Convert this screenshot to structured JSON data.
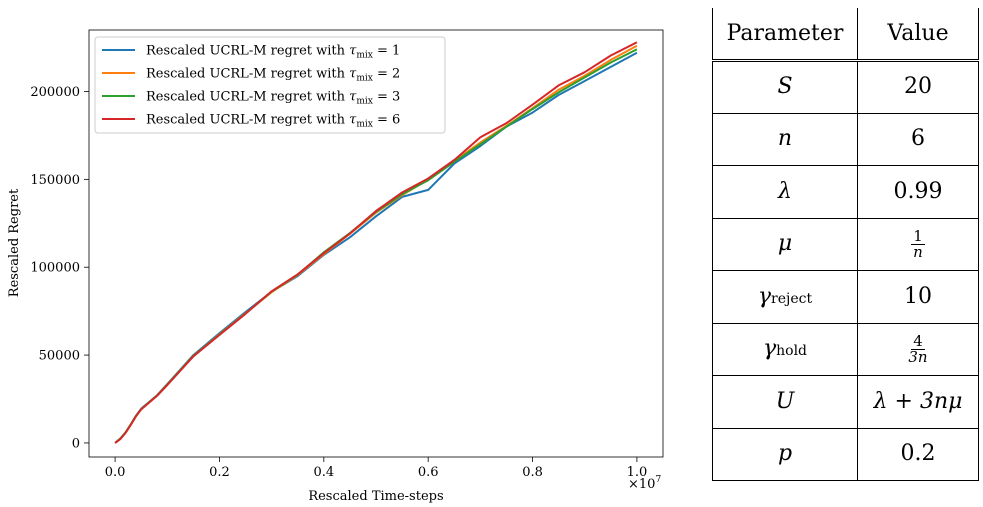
{
  "chart_data": {
    "type": "line",
    "xlabel": "Rescaled Time-steps",
    "ylabel": "Rescaled Regret",
    "x_multiplier_label": "×10",
    "x_multiplier_exp": "7",
    "xlim": [
      -0.05,
      1.05
    ],
    "ylim": [
      -8000,
      235000
    ],
    "xticks": [
      0.0,
      0.2,
      0.4,
      0.6,
      0.8,
      1.0
    ],
    "xtick_labels": [
      "0.0",
      "0.2",
      "0.4",
      "0.6",
      "0.8",
      "1.0"
    ],
    "yticks": [
      0,
      50000,
      100000,
      150000,
      200000
    ],
    "ytick_labels": [
      "0",
      "50000",
      "100000",
      "150000",
      "200000"
    ],
    "legend_position": "top-left",
    "x": [
      0.0,
      0.01,
      0.02,
      0.03,
      0.04,
      0.05,
      0.08,
      0.1,
      0.15,
      0.2,
      0.25,
      0.3,
      0.35,
      0.4,
      0.45,
      0.5,
      0.55,
      0.6,
      0.65,
      0.7,
      0.75,
      0.8,
      0.85,
      0.9,
      0.95,
      1.0
    ],
    "series": [
      {
        "name": "Rescaled UCRL-M regret with τ_mix = 1",
        "legend_text": "Rescaled UCRL-M regret with ",
        "tau_text": "τ",
        "sub_text": "mix",
        "eq_text": " = 1",
        "color": "#1f77b4",
        "values": [
          0,
          2500,
          6000,
          10500,
          15500,
          19500,
          27000,
          33500,
          50000,
          62500,
          74500,
          86000,
          95000,
          107000,
          117000,
          129000,
          140000,
          144000,
          159000,
          169000,
          180000,
          188000,
          198000,
          206000,
          214000,
          222000
        ]
      },
      {
        "name": "Rescaled UCRL-M regret with τ_mix = 2",
        "legend_text": "Rescaled UCRL-M regret with ",
        "tau_text": "τ",
        "sub_text": "mix",
        "eq_text": " = 2",
        "color": "#ff7f0e",
        "values": [
          0,
          2300,
          5800,
          10300,
          15300,
          19200,
          26800,
          33200,
          49500,
          61800,
          73800,
          85800,
          95500,
          107500,
          119000,
          131000,
          141000,
          150000,
          160500,
          171000,
          180500,
          190500,
          201000,
          209000,
          218000,
          226000
        ]
      },
      {
        "name": "Rescaled UCRL-M regret with τ_mix = 3",
        "legend_text": "Rescaled UCRL-M regret with ",
        "tau_text": "τ",
        "sub_text": "mix",
        "eq_text": " = 3",
        "color": "#2ca02c",
        "values": [
          0,
          2400,
          5900,
          10400,
          15400,
          19300,
          26900,
          33300,
          49600,
          61600,
          73600,
          86100,
          95800,
          108500,
          119500,
          131500,
          141500,
          149500,
          160000,
          170000,
          180000,
          190000,
          199500,
          208000,
          216500,
          224000
        ]
      },
      {
        "name": "Rescaled UCRL-M regret with τ_mix = 6",
        "legend_text": "Rescaled UCRL-M regret with ",
        "tau_text": "τ",
        "sub_text": "mix",
        "eq_text": " = 6",
        "color": "#d62728",
        "values": [
          0,
          2200,
          5700,
          10200,
          15200,
          19100,
          26700,
          33000,
          49300,
          61500,
          73500,
          86300,
          96000,
          108000,
          119200,
          132000,
          142500,
          150500,
          161000,
          174000,
          182000,
          192500,
          203500,
          211000,
          220500,
          228000
        ]
      }
    ]
  },
  "table": {
    "header": {
      "param": "Parameter",
      "value": "Value"
    },
    "rows": [
      {
        "param": "S",
        "value": "20"
      },
      {
        "param": "n",
        "value": "6"
      },
      {
        "param": "λ",
        "value": "0.99"
      },
      {
        "param": "μ",
        "value_num": "1",
        "value_den": "n"
      },
      {
        "param": "γ",
        "param_sub": "reject",
        "value": "10"
      },
      {
        "param": "γ",
        "param_sub": "hold",
        "value_num": "4",
        "value_den": "3n"
      },
      {
        "param": "U",
        "value": "λ + 3nμ"
      },
      {
        "param": "p",
        "value": "0.2"
      }
    ]
  }
}
